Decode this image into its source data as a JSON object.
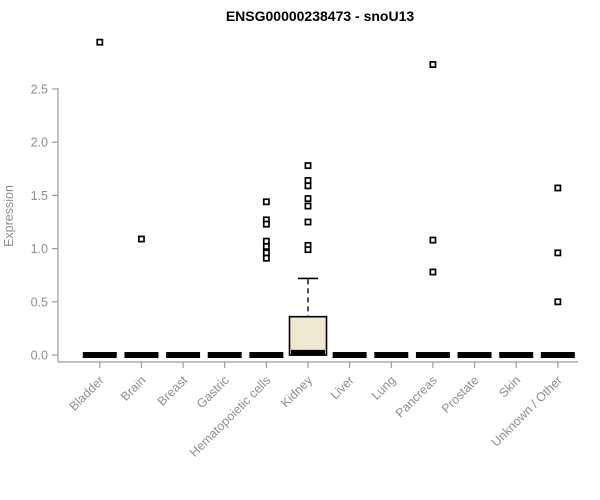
{
  "page": {
    "background": "#ffffff"
  },
  "chart_data": {
    "type": "boxplot",
    "title": "ENSG00000238473 - snoU13",
    "ylabel": "Expression",
    "xlabel": "",
    "ylim": [
      0,
      2.5
    ],
    "yticks": [
      "0.0",
      "0.5",
      "1.0",
      "1.5",
      "2.0",
      "2.5"
    ],
    "grid": false,
    "legend": "none",
    "categories": [
      "Bladder",
      "Brain",
      "Breast",
      "Gastric",
      "Hematopoietic cells",
      "Kidney",
      "Liver",
      "Lung",
      "Pancreas",
      "Prostate",
      "Skin",
      "Unknown / Other"
    ],
    "series": [
      {
        "name": "Bladder",
        "median": 0,
        "q1": 0,
        "q3": 0,
        "whisker_low": 0,
        "whisker_high": 0,
        "outliers": [
          2.94
        ]
      },
      {
        "name": "Brain",
        "median": 0,
        "q1": 0,
        "q3": 0,
        "whisker_low": 0,
        "whisker_high": 0,
        "outliers": [
          1.09
        ]
      },
      {
        "name": "Breast",
        "median": 0,
        "q1": 0,
        "q3": 0,
        "whisker_low": 0,
        "whisker_high": 0,
        "outliers": []
      },
      {
        "name": "Gastric",
        "median": 0,
        "q1": 0,
        "q3": 0,
        "whisker_low": 0,
        "whisker_high": 0,
        "outliers": []
      },
      {
        "name": "Hematopoietic cells",
        "median": 0,
        "q1": 0,
        "q3": 0,
        "whisker_low": 0,
        "whisker_high": 0,
        "outliers": [
          1.44,
          1.27,
          1.23,
          1.07,
          1.02,
          0.96,
          0.91
        ]
      },
      {
        "name": "Kidney",
        "median": 0.02,
        "q1": 0,
        "q3": 0.36,
        "whisker_low": 0,
        "whisker_high": 0.72,
        "outliers": [
          1.78,
          1.64,
          1.59,
          1.47,
          1.4,
          1.25,
          1.03,
          0.99
        ]
      },
      {
        "name": "Liver",
        "median": 0,
        "q1": 0,
        "q3": 0,
        "whisker_low": 0,
        "whisker_high": 0,
        "outliers": []
      },
      {
        "name": "Lung",
        "median": 0,
        "q1": 0,
        "q3": 0,
        "whisker_low": 0,
        "whisker_high": 0,
        "outliers": []
      },
      {
        "name": "Pancreas",
        "median": 0,
        "q1": 0,
        "q3": 0,
        "whisker_low": 0,
        "whisker_high": 0,
        "outliers": [
          2.73,
          1.08,
          0.78
        ]
      },
      {
        "name": "Prostate",
        "median": 0,
        "q1": 0,
        "q3": 0,
        "whisker_low": 0,
        "whisker_high": 0,
        "outliers": []
      },
      {
        "name": "Skin",
        "median": 0,
        "q1": 0,
        "q3": 0,
        "whisker_low": 0,
        "whisker_high": 0,
        "outliers": []
      },
      {
        "name": "Unknown / Other",
        "median": 0,
        "q1": 0,
        "q3": 0,
        "whisker_low": 0,
        "whisker_high": 0,
        "outliers": [
          1.57,
          0.96,
          0.5
        ]
      }
    ],
    "colors": {
      "box_fill": "#ede8cf",
      "box_border": "#000000",
      "median": "#000000",
      "whisker": "#000000",
      "outlier_stroke": "#000000",
      "outlier_fill": "#ffffff",
      "axis": "#9b9b9b",
      "tick_label": "#8e8e8e",
      "title": "#000000",
      "background": "#ffffff"
    }
  }
}
